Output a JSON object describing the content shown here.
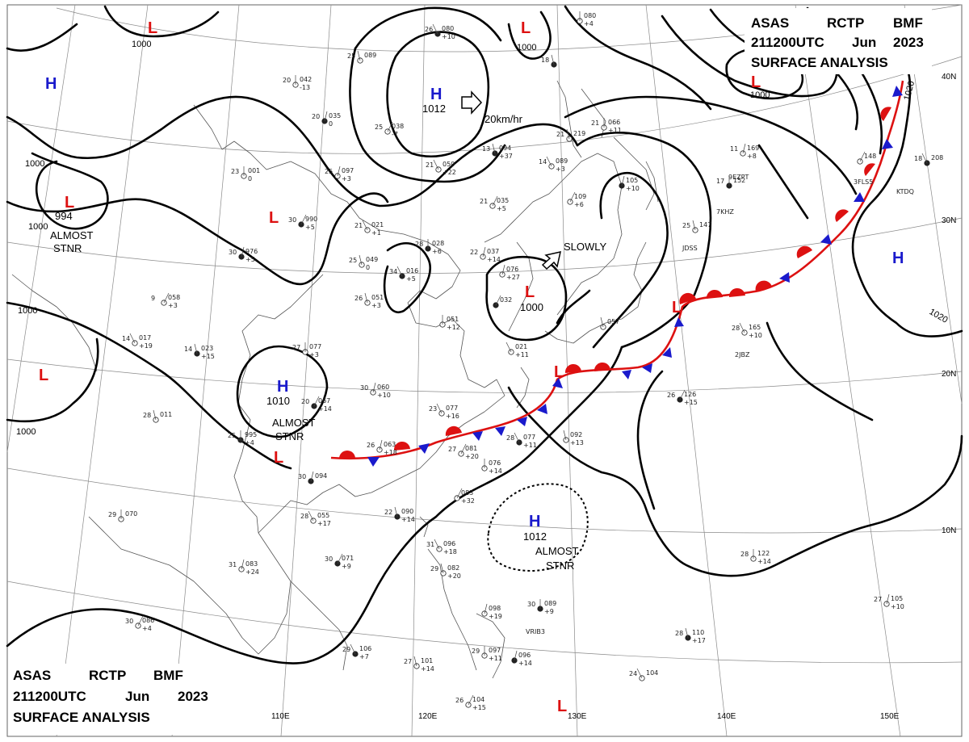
{
  "header_top": {
    "line1_parts": [
      "ASAS",
      "RCTP",
      "BMF"
    ],
    "line2_parts": [
      "211200UTC",
      "Jun",
      "2023"
    ],
    "line3": "SURFACE  ANALYSIS"
  },
  "header_bottom": {
    "line1_parts": [
      "ASAS",
      "RCTP",
      "BMF"
    ],
    "line2_parts": [
      "211200UTC",
      "Jun",
      "2023"
    ],
    "line3": "SURFACE  ANALYSIS"
  },
  "colors": {
    "high": "#1a1acc",
    "low": "#dd1111",
    "warm_front": "#dd1111",
    "cold_front": "#1a1acc",
    "isobar": "#000000"
  },
  "longitude_labels": [
    "110E",
    "120E",
    "130E",
    "140E",
    "150E"
  ],
  "latitude_labels": [
    "40N",
    "30N",
    "20N",
    "10N"
  ],
  "pressure_centers": [
    {
      "type": "H",
      "value": "1012"
    },
    {
      "type": "H",
      "value": "1010"
    },
    {
      "type": "H",
      "value": "1012"
    },
    {
      "type": "H",
      "value": ""
    },
    {
      "type": "H",
      "value": ""
    },
    {
      "type": "L",
      "value": "994"
    },
    {
      "type": "L",
      "value": "1000"
    },
    {
      "type": "L",
      "value": "1000"
    },
    {
      "type": "L",
      "value": ""
    },
    {
      "type": "L",
      "value": ""
    },
    {
      "type": "L",
      "value": ""
    },
    {
      "type": "L",
      "value": ""
    },
    {
      "type": "L",
      "value": ""
    },
    {
      "type": "L",
      "value": ""
    },
    {
      "type": "L",
      "value": ""
    }
  ],
  "isobar_labels": [
    "1000",
    "1000",
    "1000",
    "1000",
    "1000",
    "1000",
    "1000",
    "1020",
    "1020"
  ],
  "annotations": {
    "motion_fast": "20km/hr",
    "motion_slow": "SLOWLY",
    "stationary_1": [
      "ALMOST",
      "STNR"
    ],
    "stationary_2": [
      "ALMOST",
      "STNR"
    ],
    "stationary_3": [
      "ALMOST",
      "STNR"
    ]
  },
  "station_reports": [
    {
      "t": "26",
      "p": "080",
      "d": "+10"
    },
    {
      "t": "25",
      "p": "089",
      "d": ""
    },
    {
      "t": "20",
      "p": "042",
      "d": "-13"
    },
    {
      "t": "20",
      "p": "035",
      "d": "0"
    },
    {
      "t": "25",
      "p": "038",
      "d": "-7"
    },
    {
      "t": "21",
      "p": "050",
      "d": "+22"
    },
    {
      "t": "13",
      "p": "094",
      "d": "+37"
    },
    {
      "t": "23",
      "p": "001",
      "d": "0"
    },
    {
      "t": "25",
      "p": "097",
      "d": "+3"
    },
    {
      "t": "30",
      "p": "990",
      "d": "+5"
    },
    {
      "t": "21",
      "p": "021",
      "d": "+1"
    },
    {
      "t": "25",
      "p": "049",
      "d": "0"
    },
    {
      "t": "28",
      "p": "028",
      "d": "+6"
    },
    {
      "t": "22",
      "p": "037",
      "d": "+14"
    },
    {
      "t": "21",
      "p": "035",
      "d": "+5"
    },
    {
      "t": "34",
      "p": "016",
      "d": "+5"
    },
    {
      "t": "26",
      "p": "051",
      "d": "+3"
    },
    {
      "t": "",
      "p": "051",
      "d": "+12"
    },
    {
      "t": "30",
      "p": "976",
      "d": "+5"
    },
    {
      "t": "9",
      "p": "058",
      "d": "+3"
    },
    {
      "t": "14",
      "p": "017",
      "d": "+19"
    },
    {
      "t": "14",
      "p": "023",
      "d": "+15"
    },
    {
      "t": "27",
      "p": "077",
      "d": "+3"
    },
    {
      "t": "30",
      "p": "060",
      "d": "+10"
    },
    {
      "t": "20",
      "p": "067",
      "d": "+14"
    },
    {
      "t": "23",
      "p": "077",
      "d": "+16"
    },
    {
      "t": "28",
      "p": "011",
      "d": ""
    },
    {
      "t": "25",
      "p": "995",
      "d": "+4"
    },
    {
      "t": "26",
      "p": "063",
      "d": "+18"
    },
    {
      "t": "27",
      "p": "081",
      "d": "+20"
    },
    {
      "t": "28",
      "p": "077",
      "d": "+11"
    },
    {
      "t": "",
      "p": "092",
      "d": "+13"
    },
    {
      "t": "",
      "p": "076",
      "d": "+14"
    },
    {
      "t": "30",
      "p": "094",
      "d": ""
    },
    {
      "t": "",
      "p": "083",
      "d": "+32"
    },
    {
      "t": "28",
      "p": "055",
      "d": "+17"
    },
    {
      "t": "22",
      "p": "090",
      "d": "+14"
    },
    {
      "t": "29",
      "p": "070",
      "d": ""
    },
    {
      "t": "31",
      "p": "083",
      "d": "+24"
    },
    {
      "t": "30",
      "p": "071",
      "d": "+9"
    },
    {
      "t": "31",
      "p": "096",
      "d": "+18"
    },
    {
      "t": "29",
      "p": "082",
      "d": "+20"
    },
    {
      "t": "30",
      "p": "089",
      "d": "+9"
    },
    {
      "t": "",
      "p": "098",
      "d": "+19"
    },
    {
      "t": "30",
      "p": "086",
      "d": "+4"
    },
    {
      "t": "29",
      "p": "106",
      "d": "+7"
    },
    {
      "t": "27",
      "p": "101",
      "d": "+14"
    },
    {
      "t": "29",
      "p": "097",
      "d": "+11"
    },
    {
      "t": "",
      "p": "096",
      "d": "+14"
    },
    {
      "t": "26",
      "p": "104",
      "d": "+15"
    },
    {
      "t": "24",
      "p": "104",
      "d": ""
    },
    {
      "t": "28",
      "p": "110",
      "d": "+17"
    },
    {
      "t": "28",
      "p": "122",
      "d": "+14"
    },
    {
      "t": "27",
      "p": "105",
      "d": "+10"
    },
    {
      "t": "26",
      "p": "126",
      "d": "+15"
    },
    {
      "t": "28",
      "p": "165",
      "d": "+10"
    },
    {
      "t": "25",
      "p": "147",
      "d": ""
    },
    {
      "t": "17",
      "p": "152",
      "d": ""
    },
    {
      "t": "11",
      "p": "169",
      "d": "+8"
    },
    {
      "t": "",
      "p": "148",
      "d": ""
    },
    {
      "t": "18",
      "p": "208",
      "d": ""
    },
    {
      "t": "21",
      "p": "219",
      "d": ""
    },
    {
      "t": "21",
      "p": "066",
      "d": "+11"
    },
    {
      "t": "",
      "p": "105",
      "d": "+10"
    },
    {
      "t": "",
      "p": "109",
      "d": "+6"
    },
    {
      "t": "14",
      "p": "089",
      "d": "+3"
    },
    {
      "t": "18",
      "p": "",
      "d": ""
    },
    {
      "t": "",
      "p": "080",
      "d": "+4"
    },
    {
      "t": "",
      "p": "076",
      "d": "+27"
    },
    {
      "t": "",
      "p": "032",
      "d": ""
    },
    {
      "t": "",
      "p": "021",
      "d": "+11"
    },
    {
      "t": "",
      "p": "057",
      "d": ""
    },
    {
      "t": "",
      "p": "099",
      "d": ""
    }
  ],
  "station_ids": [
    "KTDQ",
    "3FLS5",
    "7KHZ",
    "JDSS",
    "2JBZ",
    "VRIB3",
    "9EZPT"
  ]
}
